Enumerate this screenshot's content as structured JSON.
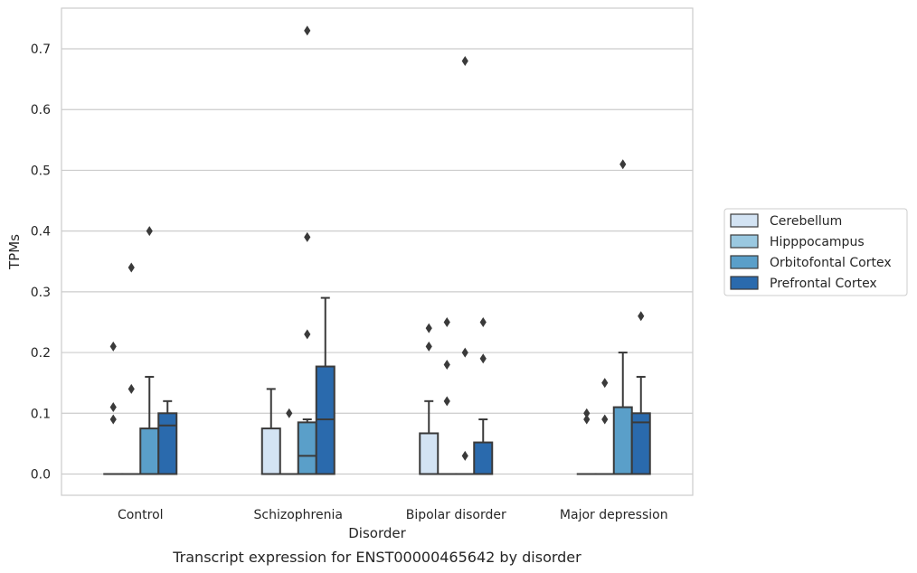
{
  "chart_data": {
    "type": "box",
    "caption": "Transcript expression for ENST00000465642 by disorder",
    "xlabel": "Disorder",
    "ylabel": "TPMs",
    "ylim": [
      -0.035,
      0.767
    ],
    "yticks": [
      0.0,
      0.1,
      0.2,
      0.3,
      0.4,
      0.5,
      0.6,
      0.7
    ],
    "ytick_labels": [
      "0.0",
      "0.1",
      "0.2",
      "0.3",
      "0.4",
      "0.5",
      "0.6",
      "0.7"
    ],
    "grid": "horizontal",
    "legend_position": "right",
    "categories": [
      "Control",
      "Schizophrenia",
      "Bipolar disorder",
      "Major depression"
    ],
    "series": [
      {
        "name": "Cerebellum",
        "color": "#d3e3f3",
        "boxes": [
          {
            "q1": 0,
            "median": 0,
            "q3": 0,
            "whisker_low": 0,
            "whisker_high": 0,
            "outliers": [
              0.09,
              0.11,
              0.21
            ]
          },
          {
            "q1": 0,
            "median": 0,
            "q3": 0.075,
            "whisker_low": 0,
            "whisker_high": 0.14,
            "outliers": []
          },
          {
            "q1": 0,
            "median": 0,
            "q3": 0.067,
            "whisker_low": 0,
            "whisker_high": 0.12,
            "outliers": [
              0.21,
              0.24
            ]
          },
          {
            "q1": 0,
            "median": 0,
            "q3": 0,
            "whisker_low": 0,
            "whisker_high": 0,
            "outliers": [
              0.09,
              0.1
            ]
          }
        ]
      },
      {
        "name": "Hipppocampus",
        "color": "#9ac8e0",
        "boxes": [
          {
            "q1": 0,
            "median": 0,
            "q3": 0,
            "whisker_low": 0,
            "whisker_high": 0,
            "outliers": [
              0.14,
              0.34
            ]
          },
          {
            "q1": 0,
            "median": 0,
            "q3": 0,
            "whisker_low": 0,
            "whisker_high": 0,
            "outliers": [
              0.1
            ]
          },
          {
            "q1": 0,
            "median": 0,
            "q3": 0,
            "whisker_low": 0,
            "whisker_high": 0,
            "outliers": [
              0.12,
              0.18,
              0.25
            ]
          },
          {
            "q1": 0,
            "median": 0,
            "q3": 0,
            "whisker_low": 0,
            "whisker_high": 0,
            "outliers": [
              0.09,
              0.15
            ]
          }
        ]
      },
      {
        "name": "Orbitofontal Cortex",
        "color": "#5a9fc9",
        "boxes": [
          {
            "q1": 0,
            "median": 0,
            "q3": 0.075,
            "whisker_low": 0,
            "whisker_high": 0.16,
            "outliers": [
              0.4
            ]
          },
          {
            "q1": 0,
            "median": 0.03,
            "q3": 0.085,
            "whisker_low": 0,
            "whisker_high": 0.09,
            "outliers": [
              0.23,
              0.39,
              0.73
            ]
          },
          {
            "q1": 0,
            "median": 0,
            "q3": 0,
            "whisker_low": 0,
            "whisker_high": 0,
            "outliers": [
              0.03,
              0.2,
              0.68
            ]
          },
          {
            "q1": 0,
            "median": 0,
            "q3": 0.11,
            "whisker_low": 0,
            "whisker_high": 0.2,
            "outliers": [
              0.51
            ]
          }
        ]
      },
      {
        "name": "Prefrontal Cortex",
        "color": "#2a6aad",
        "boxes": [
          {
            "q1": 0,
            "median": 0.08,
            "q3": 0.1,
            "whisker_low": 0,
            "whisker_high": 0.12,
            "outliers": []
          },
          {
            "q1": 0,
            "median": 0.09,
            "q3": 0.177,
            "whisker_low": 0,
            "whisker_high": 0.29,
            "outliers": []
          },
          {
            "q1": 0,
            "median": 0,
            "q3": 0.052,
            "whisker_low": 0,
            "whisker_high": 0.09,
            "outliers": [
              0.19,
              0.25
            ]
          },
          {
            "q1": 0,
            "median": 0.085,
            "q3": 0.1,
            "whisker_low": 0,
            "whisker_high": 0.16,
            "outliers": [
              0.26
            ]
          }
        ]
      }
    ]
  }
}
